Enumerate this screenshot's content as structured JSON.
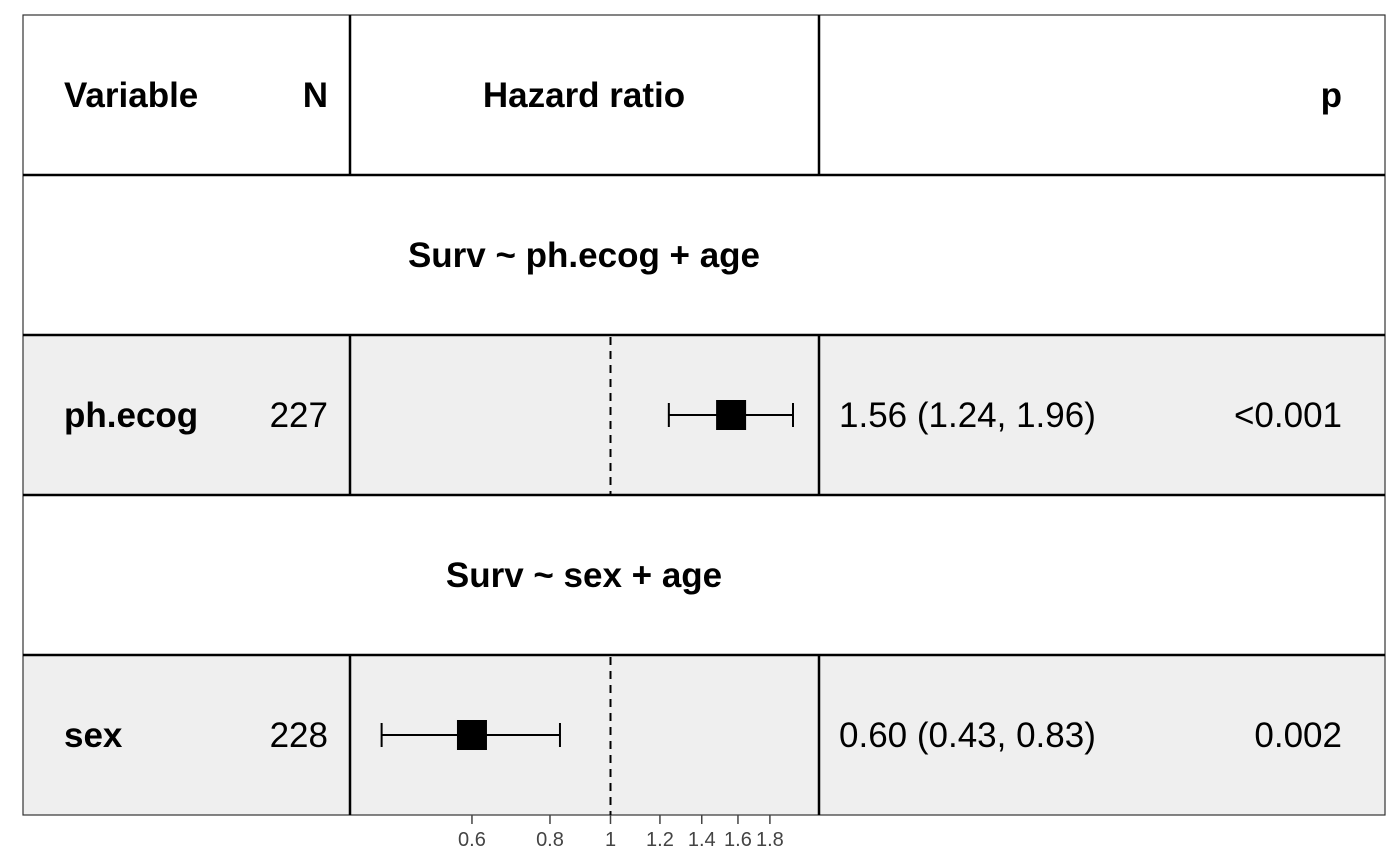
{
  "header": {
    "variable": "Variable",
    "n": "N",
    "hazard_ratio": "Hazard ratio",
    "p": "p"
  },
  "chart_data": {
    "type": "forest",
    "x_scale": "log",
    "xlim": [
      0.5,
      2.0
    ],
    "reference_line": 1,
    "ticks": [
      {
        "value": 0.6,
        "label": "0.6"
      },
      {
        "value": 0.8,
        "label": "0.8"
      },
      {
        "value": 1.0,
        "label": "1"
      },
      {
        "value": 1.2,
        "label": "1.2"
      },
      {
        "value": 1.4,
        "label": "1.4"
      },
      {
        "value": 1.6,
        "label": "1.6"
      },
      {
        "value": 1.8,
        "label": "1.8"
      }
    ],
    "rows": [
      {
        "kind": "group",
        "label": "Surv ~ ph.ecog + age"
      },
      {
        "kind": "estimate",
        "variable": "ph.ecog",
        "n": "227",
        "hr": 1.56,
        "lower": 1.24,
        "upper": 1.96,
        "ci_text": "1.56 (1.24, 1.96)",
        "p": "<0.001"
      },
      {
        "kind": "group",
        "label": "Surv ~ sex + age"
      },
      {
        "kind": "estimate",
        "variable": "sex",
        "n": "228",
        "hr": 0.6,
        "lower": 0.43,
        "upper": 0.83,
        "ci_text": "0.60 (0.43, 0.83)",
        "p": "0.002"
      }
    ]
  }
}
